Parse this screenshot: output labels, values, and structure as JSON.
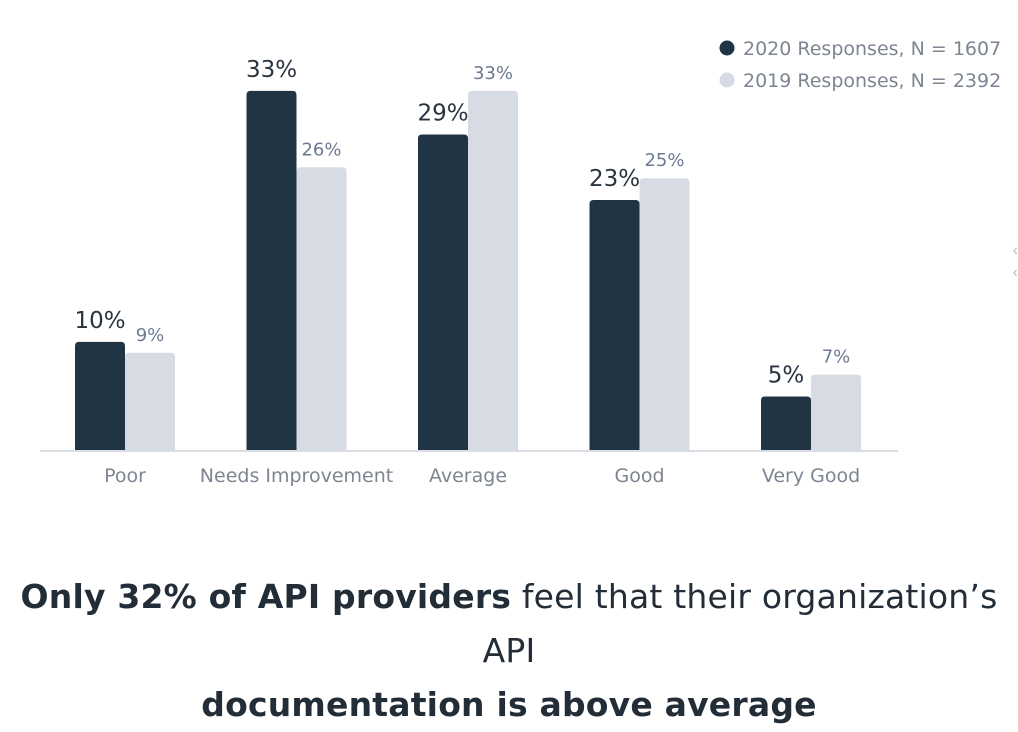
{
  "chart_data": {
    "type": "bar",
    "categories": [
      "Poor",
      "Needs Improvement",
      "Average",
      "Good",
      "Very Good"
    ],
    "series": [
      {
        "name": "2020 Responses, N = 1607",
        "values": [
          10,
          33,
          29,
          23,
          5
        ],
        "value_labels": [
          "10%",
          "33%",
          "29%",
          "23%",
          "5%"
        ],
        "color": "#213444"
      },
      {
        "name": "2019 Responses, N = 2392",
        "values": [
          9,
          26,
          33,
          25,
          7
        ],
        "value_labels": [
          "9%",
          "26%",
          "33%",
          "25%",
          "7%"
        ],
        "color": "#d7dbe4"
      }
    ],
    "ylim": [
      0,
      34
    ],
    "grid": false,
    "legend_position": "top-right",
    "label_colors": {
      "2020": "#2a3440",
      "2019": "#6c7a93"
    }
  },
  "caption": {
    "bold_1": "Only 32% of API providers",
    "normal_1": " feel that their organization’s API",
    "bold_2": "documentation is above average"
  }
}
